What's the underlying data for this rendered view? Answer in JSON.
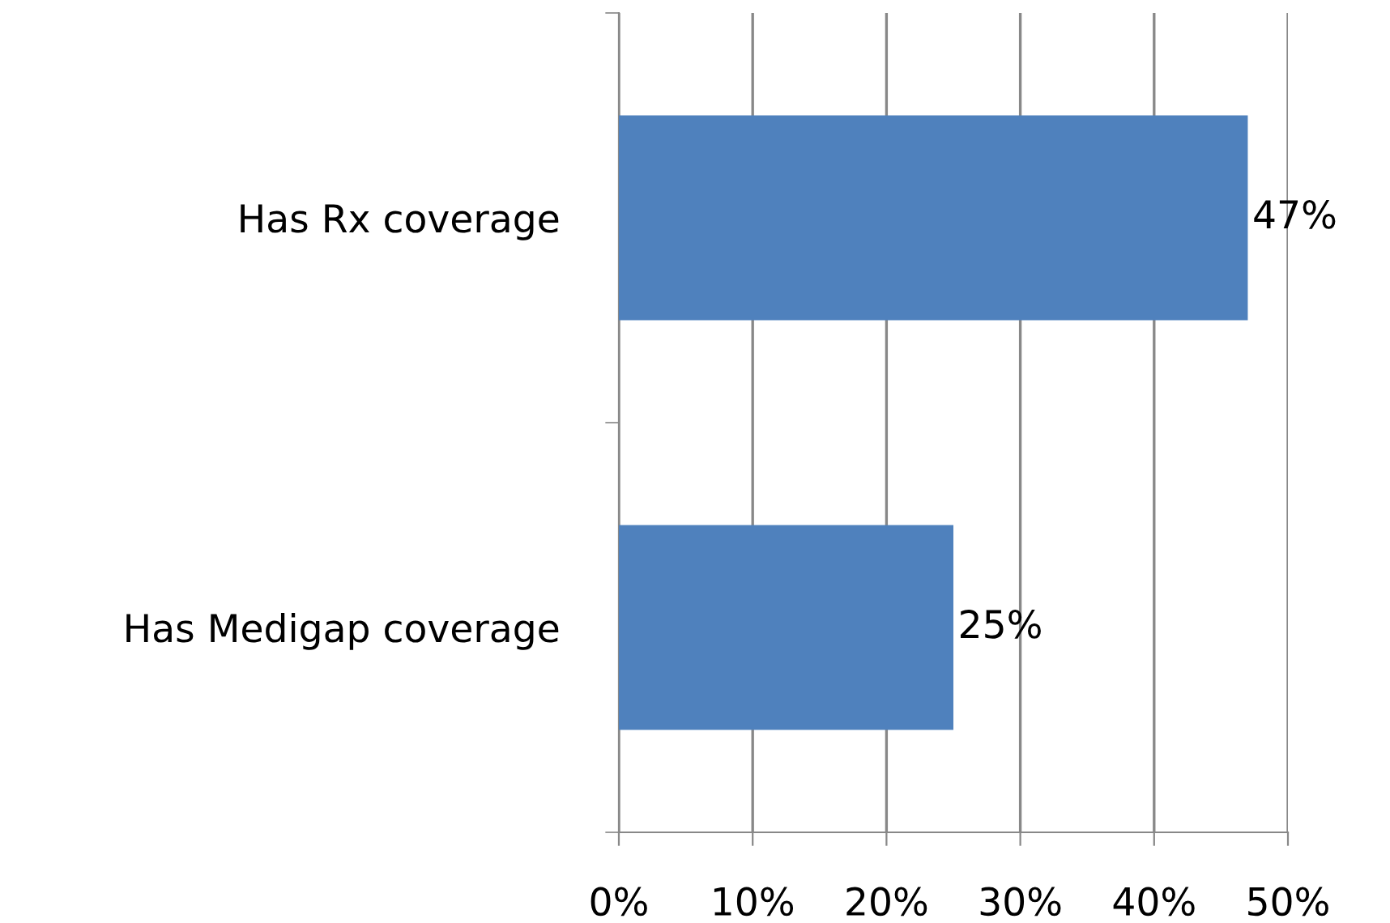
{
  "chart_data": {
    "type": "bar",
    "orientation": "horizontal",
    "categories": [
      "Has Rx coverage",
      "Has Medigap coverage"
    ],
    "values": [
      47,
      25
    ],
    "color": "#4f81bd",
    "value_labels": [
      "47%",
      "25%"
    ],
    "xlim": [
      0,
      50
    ],
    "xticks": [
      {
        "value": 0,
        "label": "0%"
      },
      {
        "value": 10,
        "label": "10%"
      },
      {
        "value": 20,
        "label": "20%"
      },
      {
        "value": 30,
        "label": "30%"
      },
      {
        "value": 40,
        "label": "40%"
      },
      {
        "value": 50,
        "label": "50%"
      }
    ],
    "grid": "x",
    "legend": false
  }
}
